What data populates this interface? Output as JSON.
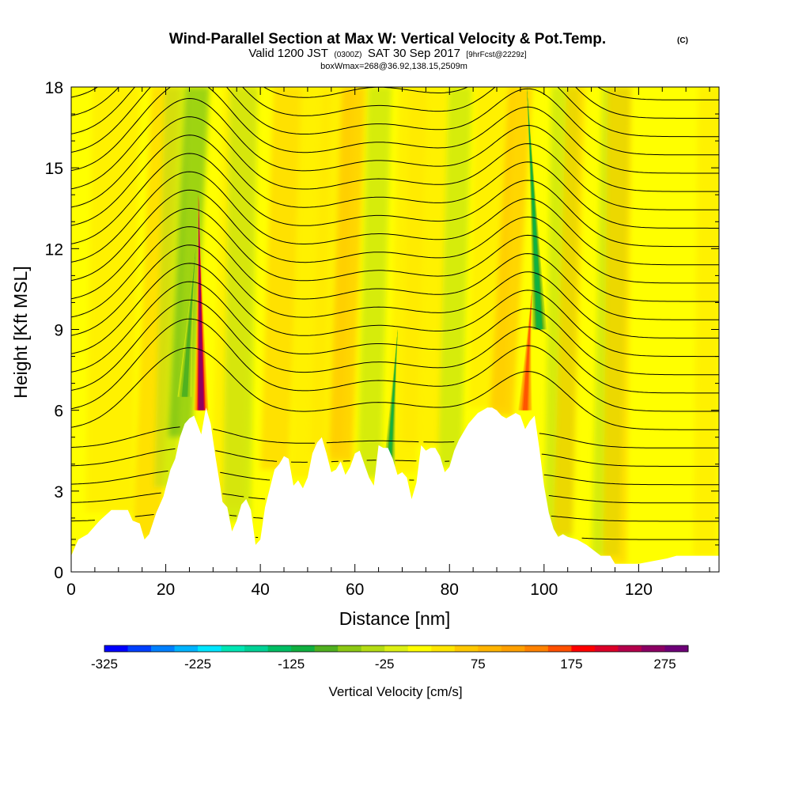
{
  "chart_data": {
    "type": "heatmap",
    "title": "Wind-Parallel Section at Max W: Vertical Velocity & Pot.Temp.",
    "title_units": "(C)",
    "subtitle_parts": [
      "Valid 1200 JST",
      "(0300Z)",
      "SAT 30 Sep 2017",
      "[9hrFcst@2229z]"
    ],
    "subtitle2": "boxWmax=268@36.92,138.15,2509m",
    "xlabel": "Distance [nm]",
    "ylabel": "Height [Kft MSL]",
    "xlim": [
      0,
      137
    ],
    "ylim": [
      0,
      18
    ],
    "xticks": [
      0,
      20,
      40,
      60,
      80,
      100,
      120
    ],
    "yticks": [
      0,
      3,
      6,
      9,
      12,
      15,
      18
    ],
    "grid": false,
    "colorbar": {
      "label": "Vertical Velocity [cm/s]",
      "ticks": [
        -325,
        -225,
        -125,
        -25,
        75,
        175,
        275
      ],
      "min": -325,
      "max": 300,
      "step": 25,
      "colors": [
        "#0000ff",
        "#0040ff",
        "#0080ff",
        "#00b4ff",
        "#00e6ff",
        "#00e6b4",
        "#00d296",
        "#00be64",
        "#10b040",
        "#50b020",
        "#8cc814",
        "#b4dc14",
        "#dcf014",
        "#ffff00",
        "#ffe600",
        "#ffc800",
        "#ffb400",
        "#ffa000",
        "#ff8200",
        "#ff5000",
        "#ff0000",
        "#dc0028",
        "#b4004b",
        "#8c0064",
        "#6e0078"
      ]
    },
    "series": [
      {
        "name": "updraft",
        "x": 27.5,
        "kft_range": [
          6,
          14
        ],
        "peak": 268
      },
      {
        "name": "updraft",
        "x": 96,
        "kft_range": [
          6,
          10.5
        ],
        "peak": 175
      },
      {
        "name": "downdraft",
        "x": 24,
        "kft_range": [
          6.5,
          12
        ],
        "peak": -100
      },
      {
        "name": "downdraft",
        "x": 99,
        "kft_range": [
          9,
          18
        ],
        "peak": -125
      },
      {
        "name": "downdraft",
        "x": 67,
        "kft_range": [
          3,
          9
        ],
        "peak": -110
      }
    ],
    "terrain_kft": [
      [
        0,
        0.6
      ],
      [
        1.5,
        1.2
      ],
      [
        3.5,
        1.4
      ],
      [
        6,
        1.9
      ],
      [
        8.5,
        2.3
      ],
      [
        12,
        2.3
      ],
      [
        13,
        1.9
      ],
      [
        14.5,
        1.8
      ],
      [
        15.5,
        1.2
      ],
      [
        16.5,
        1.4
      ],
      [
        18,
        2.2
      ],
      [
        19.5,
        2.8
      ],
      [
        21,
        3.8
      ],
      [
        22,
        4.2
      ],
      [
        23,
        5.0
      ],
      [
        24,
        5.5
      ],
      [
        25,
        5.7
      ],
      [
        26,
        5.8
      ],
      [
        27.5,
        5.1
      ],
      [
        28.5,
        6.1
      ],
      [
        29.5,
        5.5
      ],
      [
        30.5,
        4.3
      ],
      [
        31.5,
        3.2
      ],
      [
        32,
        2.6
      ],
      [
        33,
        2.4
      ],
      [
        34,
        1.5
      ],
      [
        35,
        1.9
      ],
      [
        36,
        2.5
      ],
      [
        37,
        2.7
      ],
      [
        38,
        2.3
      ],
      [
        39,
        1.0
      ],
      [
        40,
        1.2
      ],
      [
        41,
        2.4
      ],
      [
        42,
        3.1
      ],
      [
        43,
        3.8
      ],
      [
        44,
        4.0
      ],
      [
        45,
        4.3
      ],
      [
        46,
        4.2
      ],
      [
        47,
        3.2
      ],
      [
        48,
        3.4
      ],
      [
        49,
        3.1
      ],
      [
        50,
        3.5
      ],
      [
        51,
        4.4
      ],
      [
        52,
        4.8
      ],
      [
        53,
        5.0
      ],
      [
        54,
        4.4
      ],
      [
        55,
        3.7
      ],
      [
        56,
        3.8
      ],
      [
        57,
        4.1
      ],
      [
        58,
        3.6
      ],
      [
        59,
        3.9
      ],
      [
        60,
        4.4
      ],
      [
        61,
        4.5
      ],
      [
        62,
        4.0
      ],
      [
        63,
        3.5
      ],
      [
        64,
        3.2
      ],
      [
        65,
        4.7
      ],
      [
        66,
        4.6
      ],
      [
        67,
        4.6
      ],
      [
        68,
        4.2
      ],
      [
        69,
        3.6
      ],
      [
        70,
        3.7
      ],
      [
        71,
        3.5
      ],
      [
        72,
        2.7
      ],
      [
        73,
        3.3
      ],
      [
        74,
        4.7
      ],
      [
        75,
        4.5
      ],
      [
        76,
        4.6
      ],
      [
        77,
        4.6
      ],
      [
        78,
        4.3
      ],
      [
        79,
        3.7
      ],
      [
        80,
        3.9
      ],
      [
        81,
        4.5
      ],
      [
        82,
        4.9
      ],
      [
        83,
        5.2
      ],
      [
        84,
        5.5
      ],
      [
        85,
        5.7
      ],
      [
        86,
        5.9
      ],
      [
        87,
        6.0
      ],
      [
        88,
        6.1
      ],
      [
        89,
        6.1
      ],
      [
        90,
        6.0
      ],
      [
        91,
        5.8
      ],
      [
        92,
        5.7
      ],
      [
        93,
        5.8
      ],
      [
        94,
        5.9
      ],
      [
        95,
        5.8
      ],
      [
        96,
        5.3
      ],
      [
        97,
        5.6
      ],
      [
        98,
        5.8
      ],
      [
        99,
        4.6
      ],
      [
        100,
        3.2
      ],
      [
        101,
        2.2
      ],
      [
        102,
        1.6
      ],
      [
        103,
        1.3
      ],
      [
        104,
        1.4
      ],
      [
        105,
        1.3
      ],
      [
        107,
        1.2
      ],
      [
        109,
        1.0
      ],
      [
        112,
        0.6
      ],
      [
        114,
        0.6
      ],
      [
        115,
        0.3
      ],
      [
        118,
        0.3
      ],
      [
        120,
        0.3
      ],
      [
        123,
        0.4
      ],
      [
        126,
        0.5
      ],
      [
        128,
        0.6
      ],
      [
        137,
        0.6
      ]
    ]
  }
}
